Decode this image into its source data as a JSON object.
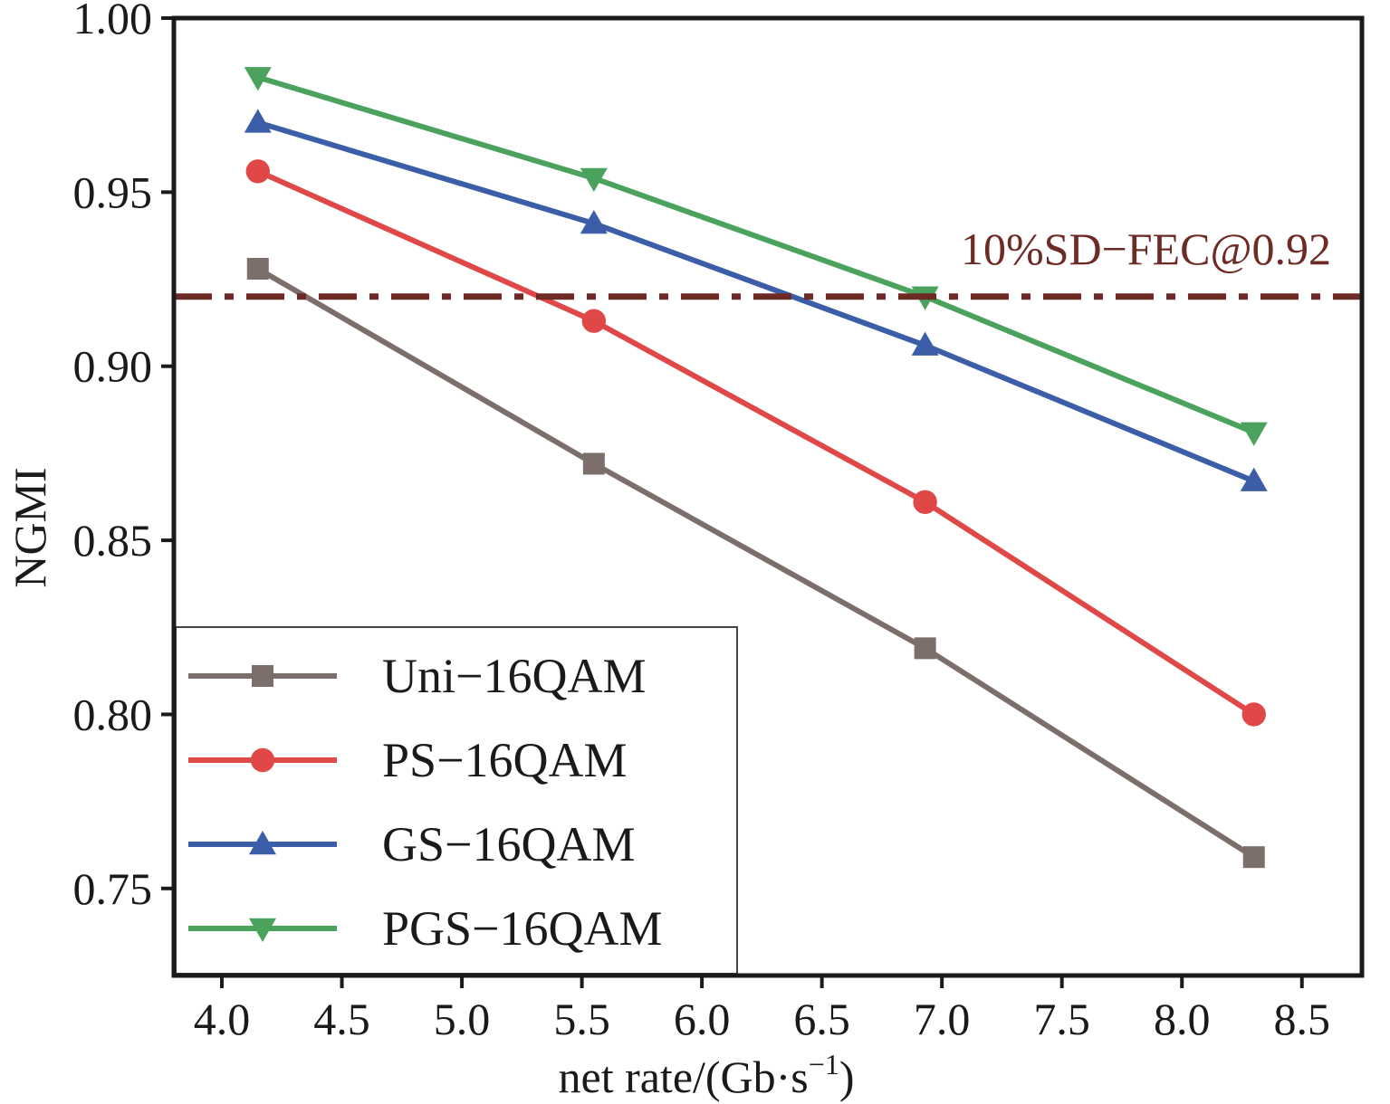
{
  "chart_data": {
    "type": "line",
    "xlabel": "net rate/(Gb·s",
    "xlabel_sup": "−1",
    "xlabel_tail": ")",
    "ylabel": "NGMI",
    "xlim": [
      3.8,
      8.75
    ],
    "ylim": [
      0.725,
      1.0
    ],
    "xticks": [
      4.0,
      4.5,
      5.0,
      5.5,
      6.0,
      6.5,
      7.0,
      7.5,
      8.0,
      8.5
    ],
    "xtick_labels": [
      "4.0",
      "4.5",
      "5.0",
      "5.5",
      "6.0",
      "6.5",
      "7.0",
      "7.5",
      "8.0",
      "8.5"
    ],
    "yticks": [
      0.75,
      0.8,
      0.85,
      0.9,
      0.95,
      1.0
    ],
    "ytick_labels": [
      "0.75",
      "0.80",
      "0.85",
      "0.90",
      "0.95",
      "1.00"
    ],
    "grid": false,
    "legend_position": "bottom-left",
    "x": [
      4.15,
      5.55,
      6.93,
      8.3
    ],
    "series": [
      {
        "name": "Uni−16QAM",
        "values": [
          0.928,
          0.872,
          0.819,
          0.759
        ],
        "color": "#7b6e6b",
        "marker": "square"
      },
      {
        "name": "PS−16QAM",
        "values": [
          0.956,
          0.913,
          0.861,
          0.8
        ],
        "color": "#e04848",
        "marker": "circle"
      },
      {
        "name": "GS−16QAM",
        "values": [
          0.97,
          0.941,
          0.906,
          0.867
        ],
        "color": "#3c5ea8",
        "marker": "triangle-up"
      },
      {
        "name": "PGS−16QAM",
        "values": [
          0.983,
          0.954,
          0.92,
          0.881
        ],
        "color": "#4aa25c",
        "marker": "triangle-down"
      }
    ],
    "threshold": {
      "value": 0.92,
      "label": "10%SD−FEC@0.92",
      "color": "#6e2a24",
      "style": "dash-dot"
    }
  }
}
